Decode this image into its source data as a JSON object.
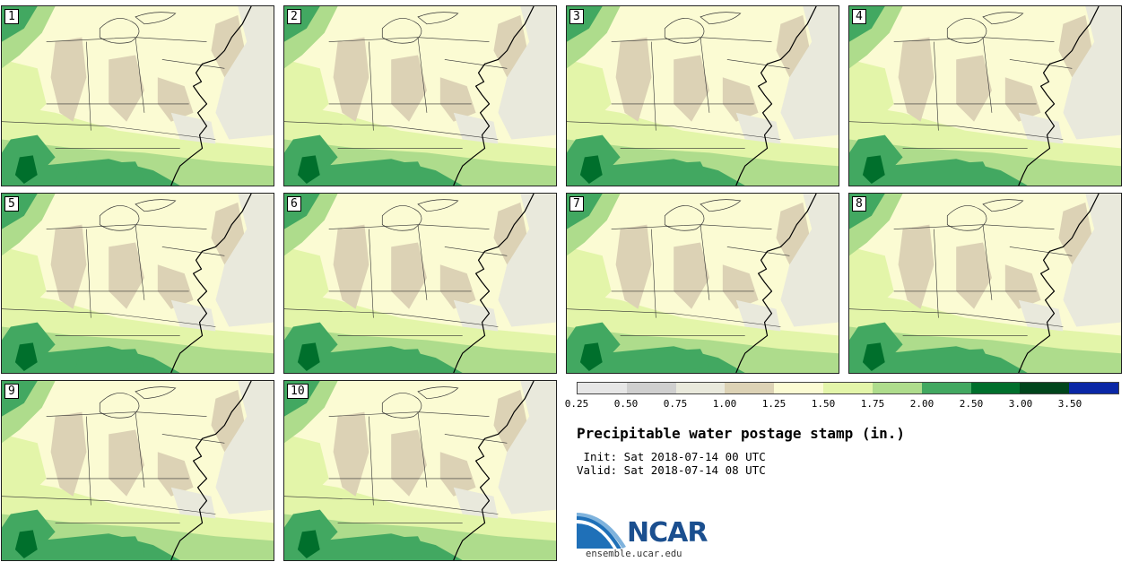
{
  "stamps": [
    {
      "label": "1"
    },
    {
      "label": "2"
    },
    {
      "label": "3"
    },
    {
      "label": "4"
    },
    {
      "label": "5"
    },
    {
      "label": "6"
    },
    {
      "label": "7"
    },
    {
      "label": "8"
    },
    {
      "label": "9"
    },
    {
      "label": "10"
    }
  ],
  "colorbar": {
    "ticks": [
      "0.25",
      "0.50",
      "0.75",
      "1.00",
      "1.25",
      "1.50",
      "1.75",
      "2.00",
      "2.50",
      "3.00",
      "3.50"
    ],
    "colors": [
      "#e6e6e6",
      "#cfcfcf",
      "#e9e9dc",
      "#dcd2b5",
      "#fbfbd3",
      "#e3f5a9",
      "#aedc8c",
      "#42a861",
      "#006f2c",
      "#00451c",
      "#0a27a6"
    ]
  },
  "title": "Precipitable water postage stamp (in.)",
  "init_line": " Init: Sat 2018-07-14 00 UTC",
  "valid_line": "Valid: Sat 2018-07-14 08 UTC",
  "logo": {
    "text": "NCAR",
    "url": "ensemble.ucar.edu",
    "primary_color": "#1b4f8f"
  }
}
